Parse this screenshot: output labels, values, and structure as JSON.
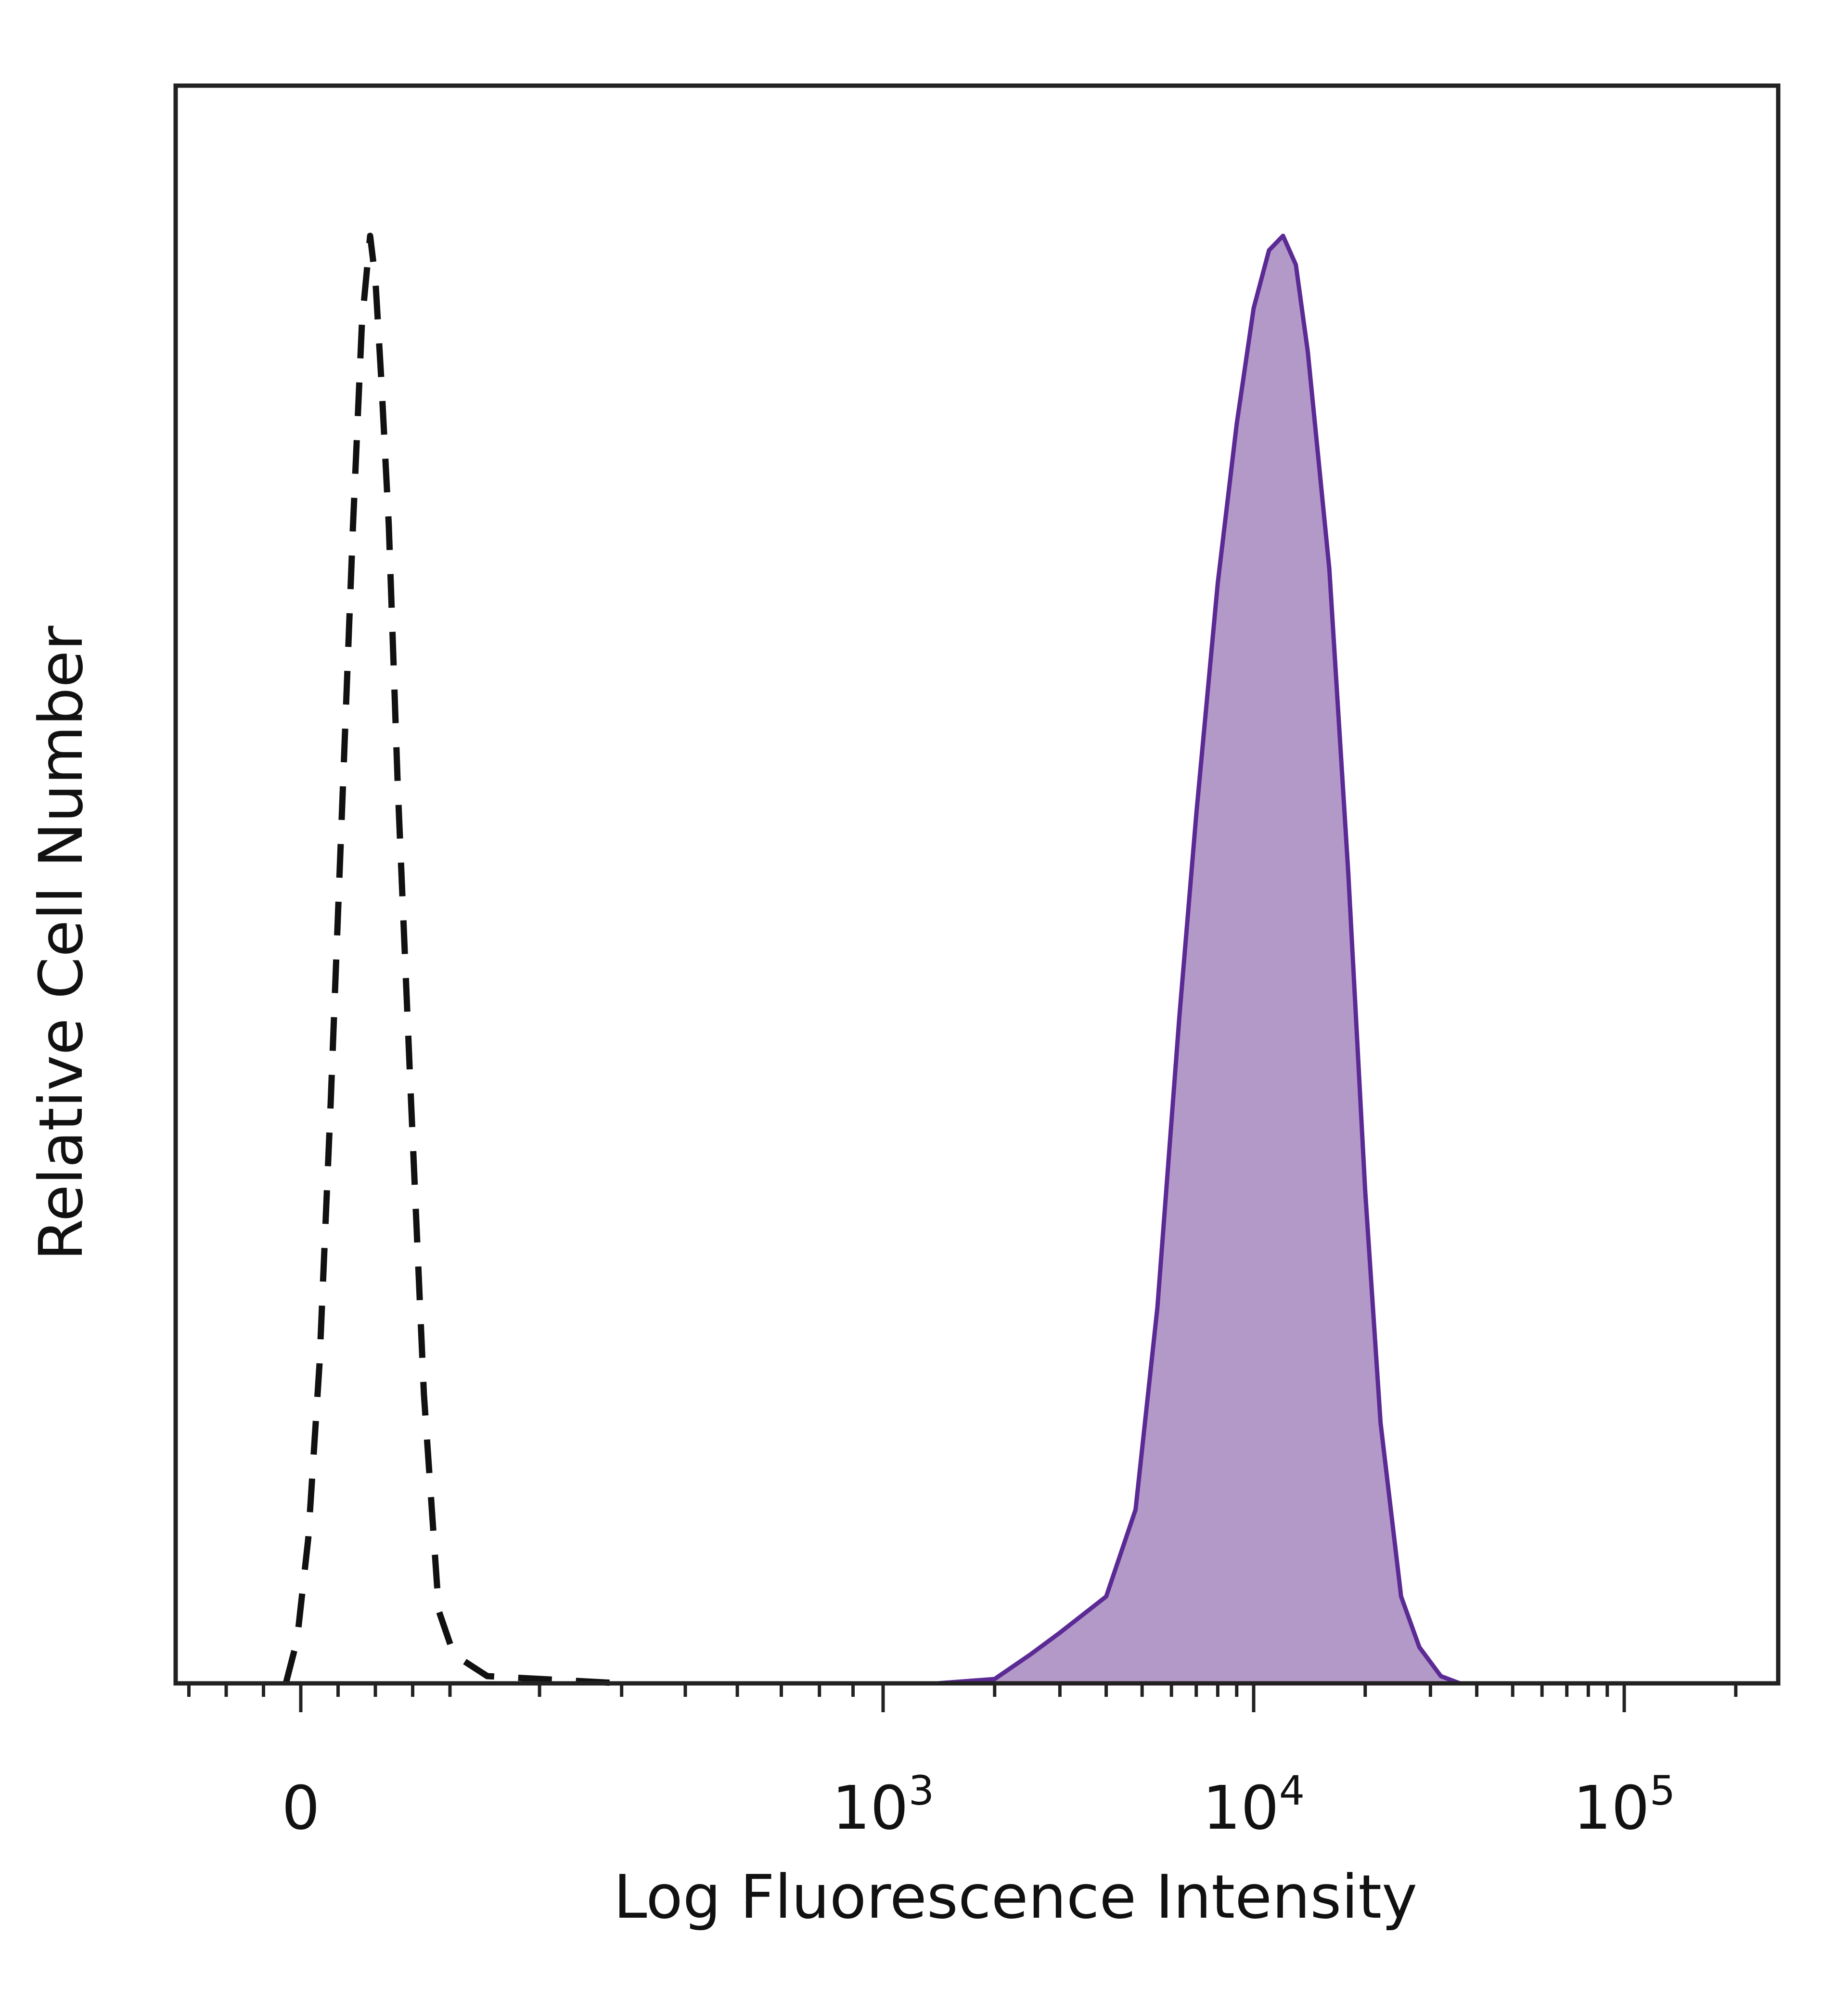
{
  "chart_data": {
    "type": "area",
    "title": "",
    "xlabel": "Log Fluorescence Intensity",
    "ylabel": "Relative Cell Number",
    "x_scale": "biexponential",
    "x_ticks": [
      {
        "value": 0,
        "base": "0",
        "exp": ""
      },
      {
        "value": 1000,
        "base": "10",
        "exp": "3"
      },
      {
        "value": 10000,
        "base": "10",
        "exp": "4"
      },
      {
        "value": 100000,
        "base": "10",
        "exp": "5"
      }
    ],
    "xlim": [
      -200,
      200000
    ],
    "ylim": [
      0,
      1.08
    ],
    "grid": false,
    "legend": "none",
    "series": [
      {
        "style": "dashed",
        "color": "#111111",
        "fill": "none",
        "points": [
          [
            -20,
            0.0
          ],
          [
            -5,
            0.03
          ],
          [
            10,
            0.1
          ],
          [
            25,
            0.22
          ],
          [
            40,
            0.4
          ],
          [
            55,
            0.6
          ],
          [
            70,
            0.8
          ],
          [
            82,
            0.94
          ],
          [
            93,
            1.0
          ],
          [
            100,
            0.97
          ],
          [
            108,
            0.9
          ],
          [
            118,
            0.8
          ],
          [
            130,
            0.62
          ],
          [
            148,
            0.4
          ],
          [
            165,
            0.2
          ],
          [
            185,
            0.05
          ],
          [
            205,
            0.02
          ],
          [
            250,
            0.005
          ],
          [
            400,
            0.0
          ]
        ]
      },
      {
        "style": "solid",
        "color": "#5b2a95",
        "fill": "#b399c8",
        "points": [
          [
            300,
            0.0
          ],
          [
            1400,
            0.0
          ],
          [
            2000,
            0.003
          ],
          [
            2500,
            0.02
          ],
          [
            3000,
            0.035
          ],
          [
            4000,
            0.06
          ],
          [
            4800,
            0.12
          ],
          [
            5500,
            0.26
          ],
          [
            6300,
            0.46
          ],
          [
            7000,
            0.6
          ],
          [
            8000,
            0.76
          ],
          [
            9000,
            0.87
          ],
          [
            10000,
            0.95
          ],
          [
            11000,
            0.99
          ],
          [
            12000,
            1.0
          ],
          [
            13000,
            0.98
          ],
          [
            14000,
            0.92
          ],
          [
            16000,
            0.77
          ],
          [
            18000,
            0.56
          ],
          [
            20000,
            0.34
          ],
          [
            22000,
            0.18
          ],
          [
            25000,
            0.06
          ],
          [
            28000,
            0.025
          ],
          [
            32000,
            0.005
          ],
          [
            36000,
            0.0
          ],
          [
            150000,
            0.0
          ]
        ]
      }
    ]
  }
}
